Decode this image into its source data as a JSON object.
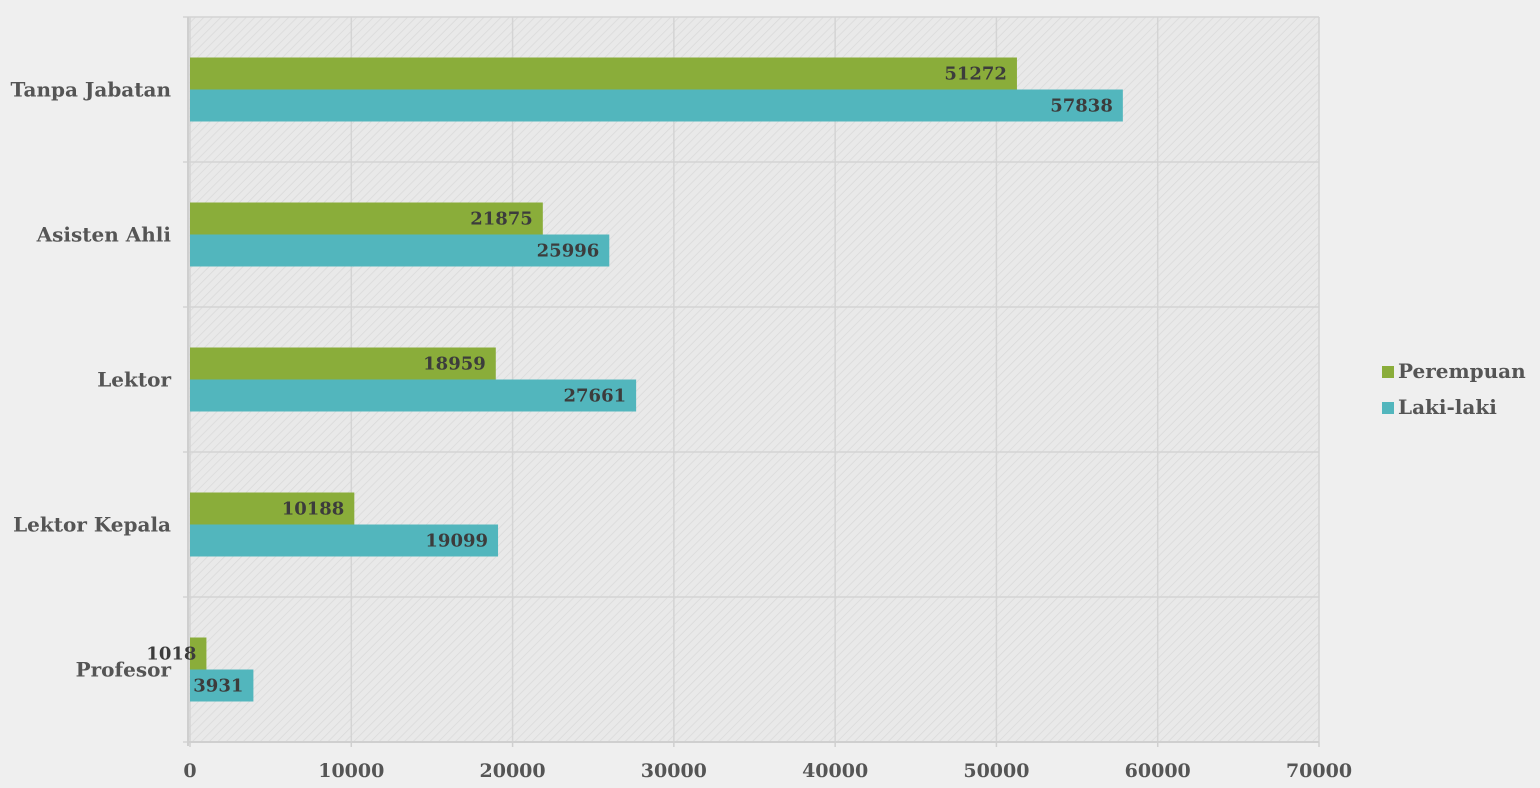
{
  "chart_data": {
    "type": "bar",
    "orientation": "horizontal",
    "categories": [
      "Tanpa Jabatan",
      "Asisten Ahli",
      "Lektor",
      "Lektor Kepala",
      "Profesor"
    ],
    "series": [
      {
        "name": "Perempuan",
        "color": "#8aad3a",
        "values": [
          51272,
          21875,
          18959,
          10188,
          1018
        ]
      },
      {
        "name": "Laki-laki",
        "color": "#52b6bd",
        "values": [
          57838,
          25996,
          27661,
          19099,
          3931
        ]
      }
    ],
    "xlim": [
      0,
      70000
    ],
    "x_ticks": [
      0,
      10000,
      20000,
      30000,
      40000,
      50000,
      60000,
      70000
    ],
    "x_tick_labels": [
      "0",
      "10000",
      "20000",
      "30000",
      "40000",
      "50000",
      "60000",
      "70000"
    ],
    "grid": true,
    "legend_position": "right",
    "data_labels": true,
    "title": "",
    "xlabel": "",
    "ylabel": ""
  }
}
